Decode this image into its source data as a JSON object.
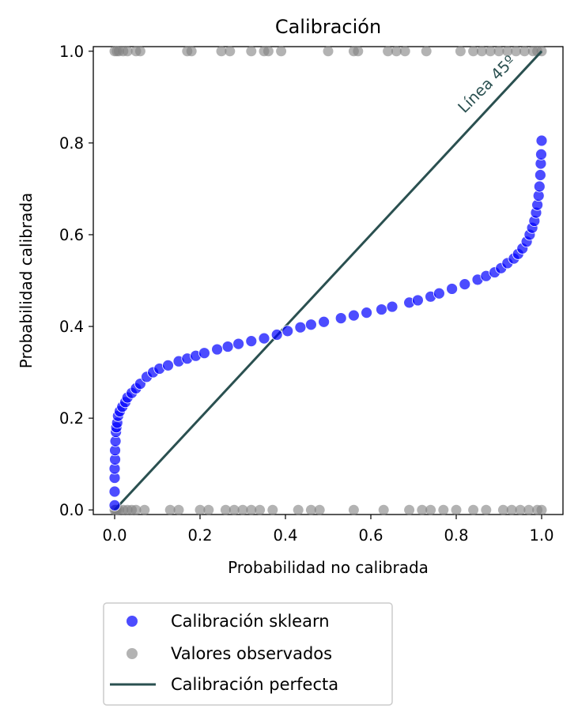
{
  "chart_data": {
    "type": "scatter",
    "title": "Calibración",
    "xlabel": "Probabilidad no calibrada",
    "ylabel": "Probabilidad calibrada",
    "xlim": [
      -0.05,
      1.05
    ],
    "ylim": [
      -0.01,
      1.01
    ],
    "xticks": [
      "0.0",
      "0.2",
      "0.4",
      "0.6",
      "0.8",
      "1.0"
    ],
    "yticks": [
      "0.0",
      "0.2",
      "0.4",
      "0.6",
      "0.8",
      "1.0"
    ],
    "grid": false,
    "legend_position": "below-left",
    "annotation": {
      "text": "Línea 45º",
      "x": 0.88,
      "y": 0.92,
      "rotation_deg": 45,
      "color": "#2a5050"
    },
    "series": [
      {
        "name": "Calibración sklearn",
        "kind": "scatter",
        "color": "#0000ff",
        "alpha": 0.7,
        "points": [
          [
            0.0,
            0.01
          ],
          [
            0.0,
            0.04
          ],
          [
            0.0,
            0.07
          ],
          [
            0.0,
            0.09
          ],
          [
            0.001,
            0.11
          ],
          [
            0.001,
            0.13
          ],
          [
            0.002,
            0.15
          ],
          [
            0.003,
            0.17
          ],
          [
            0.004,
            0.18
          ],
          [
            0.006,
            0.19
          ],
          [
            0.008,
            0.205
          ],
          [
            0.012,
            0.215
          ],
          [
            0.018,
            0.225
          ],
          [
            0.025,
            0.235
          ],
          [
            0.03,
            0.245
          ],
          [
            0.04,
            0.255
          ],
          [
            0.05,
            0.265
          ],
          [
            0.06,
            0.275
          ],
          [
            0.075,
            0.29
          ],
          [
            0.09,
            0.3
          ],
          [
            0.105,
            0.308
          ],
          [
            0.125,
            0.315
          ],
          [
            0.15,
            0.324
          ],
          [
            0.17,
            0.33
          ],
          [
            0.19,
            0.336
          ],
          [
            0.21,
            0.342
          ],
          [
            0.24,
            0.35
          ],
          [
            0.265,
            0.356
          ],
          [
            0.29,
            0.362
          ],
          [
            0.32,
            0.368
          ],
          [
            0.35,
            0.374
          ],
          [
            0.38,
            0.382
          ],
          [
            0.405,
            0.39
          ],
          [
            0.435,
            0.398
          ],
          [
            0.46,
            0.404
          ],
          [
            0.49,
            0.41
          ],
          [
            0.53,
            0.418
          ],
          [
            0.56,
            0.424
          ],
          [
            0.59,
            0.43
          ],
          [
            0.625,
            0.437
          ],
          [
            0.65,
            0.443
          ],
          [
            0.69,
            0.452
          ],
          [
            0.71,
            0.457
          ],
          [
            0.74,
            0.465
          ],
          [
            0.76,
            0.472
          ],
          [
            0.79,
            0.482
          ],
          [
            0.82,
            0.492
          ],
          [
            0.85,
            0.502
          ],
          [
            0.87,
            0.51
          ],
          [
            0.89,
            0.518
          ],
          [
            0.905,
            0.527
          ],
          [
            0.92,
            0.538
          ],
          [
            0.935,
            0.548
          ],
          [
            0.945,
            0.558
          ],
          [
            0.955,
            0.57
          ],
          [
            0.965,
            0.585
          ],
          [
            0.972,
            0.6
          ],
          [
            0.978,
            0.615
          ],
          [
            0.983,
            0.63
          ],
          [
            0.987,
            0.648
          ],
          [
            0.99,
            0.665
          ],
          [
            0.993,
            0.685
          ],
          [
            0.995,
            0.705
          ],
          [
            0.997,
            0.73
          ],
          [
            0.998,
            0.755
          ],
          [
            0.999,
            0.775
          ],
          [
            1.0,
            0.805
          ]
        ]
      },
      {
        "name": "Valores observados",
        "kind": "scatter",
        "color": "#808080",
        "alpha": 0.6,
        "points": [
          [
            0.0,
            1
          ],
          [
            0.005,
            1
          ],
          [
            0.01,
            1
          ],
          [
            0.02,
            1
          ],
          [
            0.03,
            1
          ],
          [
            0.05,
            1
          ],
          [
            0.06,
            1
          ],
          [
            0.17,
            1
          ],
          [
            0.18,
            1
          ],
          [
            0.25,
            1
          ],
          [
            0.27,
            1
          ],
          [
            0.32,
            1
          ],
          [
            0.35,
            1
          ],
          [
            0.36,
            1
          ],
          [
            0.39,
            1
          ],
          [
            0.5,
            1
          ],
          [
            0.56,
            1
          ],
          [
            0.57,
            1
          ],
          [
            0.64,
            1
          ],
          [
            0.66,
            1
          ],
          [
            0.68,
            1
          ],
          [
            0.73,
            1
          ],
          [
            0.81,
            1
          ],
          [
            0.84,
            1
          ],
          [
            0.86,
            1
          ],
          [
            0.88,
            1
          ],
          [
            0.9,
            1
          ],
          [
            0.92,
            1
          ],
          [
            0.94,
            1
          ],
          [
            0.96,
            1
          ],
          [
            0.98,
            1
          ],
          [
            0.99,
            1
          ],
          [
            1.0,
            1
          ],
          [
            0.0,
            0
          ],
          [
            0.002,
            0
          ],
          [
            0.005,
            0
          ],
          [
            0.01,
            0
          ],
          [
            0.02,
            0
          ],
          [
            0.03,
            0
          ],
          [
            0.04,
            0
          ],
          [
            0.05,
            0
          ],
          [
            0.07,
            0
          ],
          [
            0.13,
            0
          ],
          [
            0.15,
            0
          ],
          [
            0.2,
            0
          ],
          [
            0.22,
            0
          ],
          [
            0.26,
            0
          ],
          [
            0.28,
            0
          ],
          [
            0.3,
            0
          ],
          [
            0.32,
            0
          ],
          [
            0.34,
            0
          ],
          [
            0.37,
            0
          ],
          [
            0.43,
            0
          ],
          [
            0.46,
            0
          ],
          [
            0.48,
            0
          ],
          [
            0.56,
            0
          ],
          [
            0.63,
            0
          ],
          [
            0.69,
            0
          ],
          [
            0.72,
            0
          ],
          [
            0.74,
            0
          ],
          [
            0.77,
            0
          ],
          [
            0.8,
            0
          ],
          [
            0.84,
            0
          ],
          [
            0.87,
            0
          ],
          [
            0.91,
            0
          ],
          [
            0.93,
            0
          ],
          [
            0.95,
            0
          ],
          [
            0.97,
            0
          ],
          [
            0.99,
            0
          ],
          [
            1.0,
            0
          ]
        ]
      },
      {
        "name": "Calibración perfecta",
        "kind": "line",
        "color": "#2a5050",
        "x": [
          0,
          1
        ],
        "y": [
          0,
          1
        ]
      }
    ]
  }
}
